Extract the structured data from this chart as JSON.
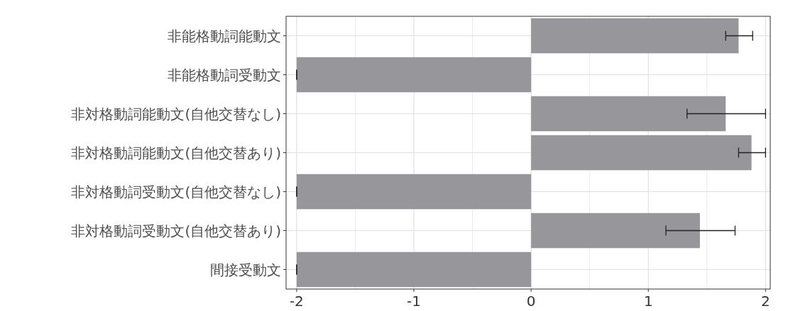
{
  "chart_data": {
    "type": "bar",
    "orientation": "horizontal",
    "categories": [
      "非能格動詞能動文",
      "非能格動詞受動文",
      "非対格動詞能動文(自他交替なし)",
      "非対格動詞能動文(自他交替あり)",
      "非対格動詞受動文(自他交替なし)",
      "非対格動詞受動文(自他交替あり)",
      "間接受動文"
    ],
    "values": [
      1.77,
      -2,
      1.66,
      1.88,
      -2,
      1.44,
      -2
    ],
    "errors": [
      [
        1.66,
        1.89
      ],
      0,
      [
        1.33,
        2.0
      ],
      [
        1.77,
        2.0
      ],
      0,
      [
        1.15,
        1.74
      ],
      0
    ],
    "color": "#97979b",
    "xlim": [
      -2.09,
      2.04
    ],
    "xticks": [
      -2,
      -1,
      0,
      1,
      2
    ],
    "grid": true
  }
}
